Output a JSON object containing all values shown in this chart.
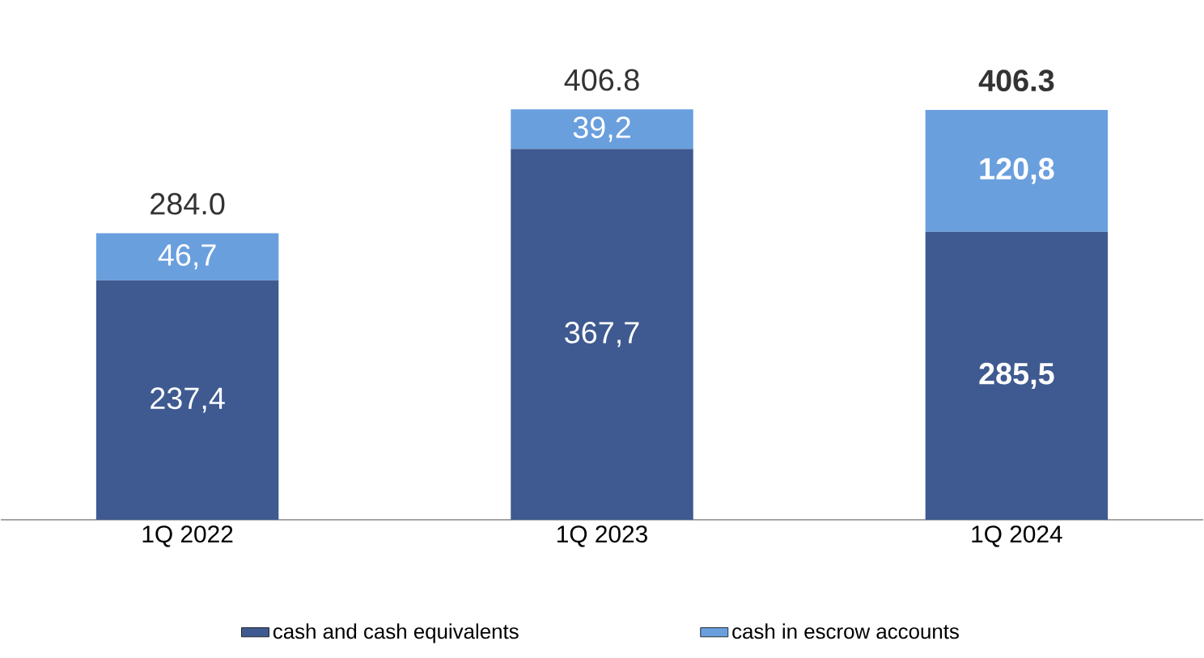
{
  "chart_data": {
    "type": "bar",
    "stacked": true,
    "categories": [
      "1Q 2022",
      "1Q 2023",
      "1Q 2024"
    ],
    "series": [
      {
        "name": "cash and cash equivalents",
        "color": "#3f5a91",
        "values": [
          237.4,
          367.7,
          285.5
        ],
        "value_labels": [
          "237,4",
          "367,7",
          "**285,5**"
        ]
      },
      {
        "name": "cash in escrow accounts",
        "color": "#6a9fde",
        "values": [
          46.7,
          39.2,
          120.8
        ],
        "value_labels": [
          "46,7",
          "39,2",
          "**120,8**"
        ]
      }
    ],
    "totals": [
      "284.0",
      "406.8",
      "**406.3**"
    ],
    "legend": "bottom"
  }
}
